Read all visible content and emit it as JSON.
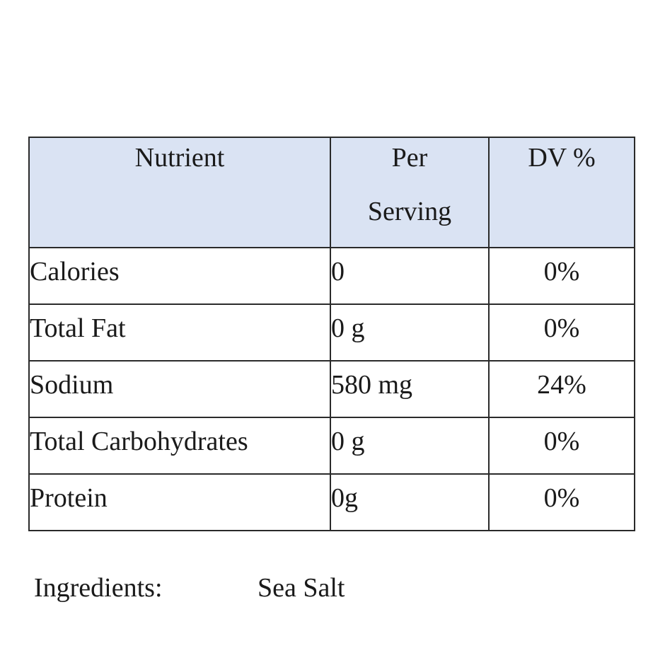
{
  "table": {
    "headers": {
      "nutrient": "Nutrient",
      "per_serving_line1": "Per",
      "per_serving_line2": "Serving",
      "dv": "DV %"
    },
    "rows": [
      {
        "nutrient": "Calories",
        "per_serving": "0",
        "dv": "0%"
      },
      {
        "nutrient": "Total Fat",
        "per_serving": "0 g",
        "dv": "0%"
      },
      {
        "nutrient": "Sodium",
        "per_serving": "580 mg",
        "dv": "24%"
      },
      {
        "nutrient": "Total Carbohydrates",
        "per_serving": "0 g",
        "dv": "0%"
      },
      {
        "nutrient": "Protein",
        "per_serving": "0g",
        "dv": "0%"
      }
    ],
    "header_color": "#dae3f3",
    "border_color": "#2a2a2a"
  },
  "ingredients": {
    "label": "Ingredients:",
    "value": "Sea Salt"
  }
}
